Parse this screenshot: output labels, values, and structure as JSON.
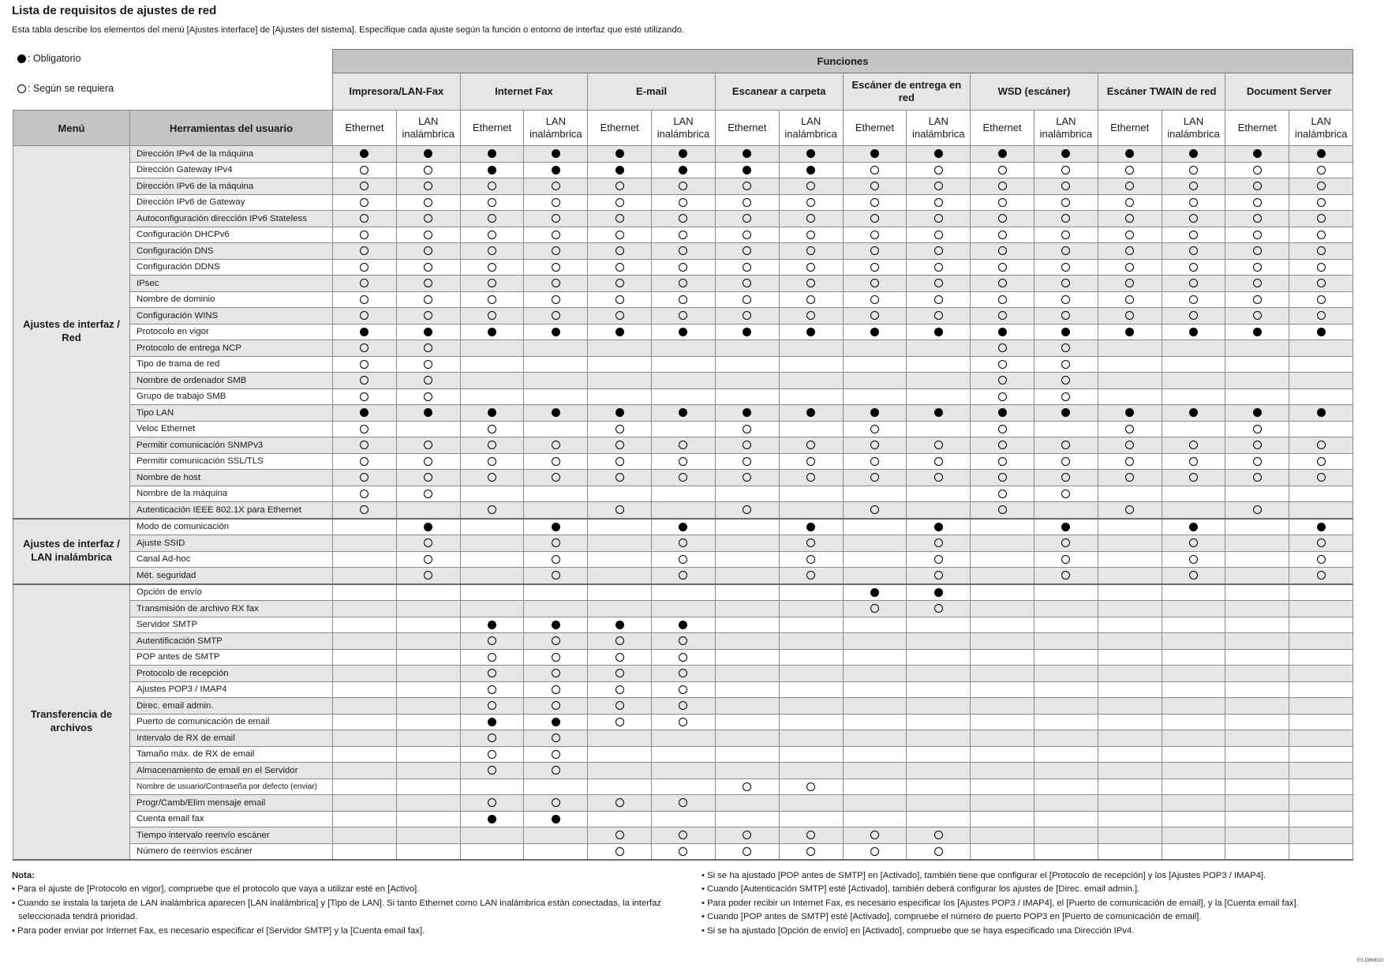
{
  "title": "Lista de requisitos de ajustes de red",
  "subtitle": "Esta tabla describe los elementos del menú [Ajustes interface] de [Ajustes del sistema]. Especifique cada ajuste según la función o entorno de interfaz que esté utilizando.",
  "legend": {
    "filled": {
      "symbol": "filled-circle",
      "label": ": Obligatorio"
    },
    "open": {
      "symbol": "open-circle",
      "label": ": Según se requiera"
    }
  },
  "table": {
    "functions_header": "Funciones",
    "menu_header": "Menú",
    "tools_header": "Herramientas del usuario",
    "functions": [
      "Impresora/LAN-Fax",
      "Internet Fax",
      "E-mail",
      "Escanear a carpeta",
      "Escáner de entrega en red",
      "WSD (escáner)",
      "Escáner TWAIN de red",
      "Document Server"
    ],
    "subcolumns": [
      "Ethernet",
      "LAN inalámbrica"
    ],
    "value_codes": {
      "F": "Obligatorio",
      "O": "Según se requiera",
      "-": ""
    },
    "groups": [
      {
        "menu": "Ajustes de interfaz / Red",
        "rows": [
          {
            "tool": "Dirección IPv4 de la máquina",
            "values": "FFFFFFFFFFFFFFFF"
          },
          {
            "tool": "Dirección Gateway IPv4",
            "values": "OOFFFFFFOOOOOOOO"
          },
          {
            "tool": "Dirección IPv6 de la máquina",
            "values": "OOOOOOOOOOOOOOOO"
          },
          {
            "tool": "Dirección IPv6 de Gateway",
            "values": "OOOOOOOOOOOOOOOO"
          },
          {
            "tool": "Autoconfiguración dirección IPv6 Stateless",
            "values": "OOOOOOOOOOOOOOOO"
          },
          {
            "tool": "Configuración DHCPv6",
            "values": "OOOOOOOOOOOOOOOO"
          },
          {
            "tool": "Configuración DNS",
            "values": "OOOOOOOOOOOOOOOO"
          },
          {
            "tool": "Configuración DDNS",
            "values": "OOOOOOOOOOOOOOOO"
          },
          {
            "tool": "IPsec",
            "values": "OOOOOOOOOOOOOOOO"
          },
          {
            "tool": "Nombre de dominio",
            "values": "OOOOOOOOOOOOOOOO"
          },
          {
            "tool": "Configuración WINS",
            "values": "OOOOOOOOOOOOOOOO"
          },
          {
            "tool": "Protocolo en vigor",
            "values": "FFFFFFFFFFFFFFFF"
          },
          {
            "tool": "Protocolo de entrega NCP",
            "values": "OO--------OO----"
          },
          {
            "tool": "Tipo de trama de red",
            "values": "OO--------OO----"
          },
          {
            "tool": "Nombre de ordenador SMB",
            "values": "OO--------OO----"
          },
          {
            "tool": "Grupo de trabajo SMB",
            "values": "OO--------OO----"
          },
          {
            "tool": "Tipo LAN",
            "values": "FFFFFFFFFFFFFFFF"
          },
          {
            "tool": "Veloc Ethernet",
            "values": "O-O-O-O-O-O-O-O-"
          },
          {
            "tool": "Permitir comunicación SNMPv3",
            "values": "OOOOOOOOOOOOOOOO"
          },
          {
            "tool": "Permitir comunicación SSL/TLS",
            "values": "OOOOOOOOOOOOOOOO"
          },
          {
            "tool": "Nombre de host",
            "values": "OOOOOOOOOOOOOOOO"
          },
          {
            "tool": "Nombre de la máquina",
            "values": "OO--------OO----"
          },
          {
            "tool": "Autenticación IEEE 802.1X para Ethernet",
            "values": "O-O-O-O-O-O-O-O-"
          }
        ]
      },
      {
        "menu": "Ajustes de interfaz / LAN inalámbrica",
        "rows": [
          {
            "tool": "Modo de comunicación",
            "values": "-F-F-F-F-F-F-F-F"
          },
          {
            "tool": "Ajuste SSID",
            "values": "-O-O-O-O-O-O-O-O"
          },
          {
            "tool": "Canal Ad-hoc",
            "values": "-O-O-O-O-O-O-O-O"
          },
          {
            "tool": "Mét. seguridad",
            "values": "-O-O-O-O-O-O-O-O"
          }
        ]
      },
      {
        "menu": "Transferencia de archivos",
        "rows": [
          {
            "tool": "Opción de envío",
            "values": "--------FF------"
          },
          {
            "tool": "Transmisión de archivo RX fax",
            "values": "--------OO------"
          },
          {
            "tool": "Servidor SMTP",
            "values": "--FFFF----------"
          },
          {
            "tool": "Autentificación SMTP",
            "values": "--OOOO----------"
          },
          {
            "tool": "POP antes de SMTP",
            "values": "--OOOO----------"
          },
          {
            "tool": "Protocolo de recepción",
            "values": "--OOOO----------"
          },
          {
            "tool": "Ajustes POP3 / IMAP4",
            "values": "--OOOO----------"
          },
          {
            "tool": "Direc. email admin.",
            "values": "--OOOO----------"
          },
          {
            "tool": "Puerto de comunicación de email",
            "values": "--FFOO----------"
          },
          {
            "tool": "Intervalo de RX de email",
            "values": "--OO------------"
          },
          {
            "tool": "Tamaño máx. de RX de email",
            "values": "--OO------------"
          },
          {
            "tool": "Almacenamiento de email en el Servidor",
            "values": "--OO------------"
          },
          {
            "tool": "Nombre de usuario/Contraseña por defecto (enviar)",
            "values": "------OO--------"
          },
          {
            "tool": "Progr/Camb/Elim mensaje email",
            "values": "--OOOO----------"
          },
          {
            "tool": "Cuenta email fax",
            "values": "--FF------------"
          },
          {
            "tool": "Tiempo intervalo reenvío escáner",
            "values": "----OOOOOO------"
          },
          {
            "tool": "Número de reenvíos escáner",
            "values": "----OOOOOO------"
          }
        ]
      }
    ]
  },
  "notes": {
    "heading": "Nota:",
    "left": [
      "• Para el ajuste de [Protocolo en vigor], compruebe que el protocolo que vaya a utilizar esté en [Activo].",
      "• Cuando se instala la tarjeta de LAN inalámbrica aparecen [LAN inalámbrica] y [Tipo de LAN]. Si tanto Ethernet como LAN inalámbrica están conectadas, la interfaz seleccionada tendrá prioridad.",
      "• Para poder enviar por Internet Fax, es necesario especificar el [Servidor SMTP] y la [Cuenta email fax]."
    ],
    "right": [
      "• Si se ha ajustado [POP antes de SMTP] en [Activado], también tiene que configurar el [Protocolo de recepción] y los [Ajustes POP3 / IMAP4].",
      "• Cuando [Autenticación SMTP] esté [Activado], también deberá configurar los ajustes de [Direc. email admin.].",
      "• Para poder recibir un Internet Fax, es necesario especificar los [Ajustes POP3 / IMAP4], el [Puerto de comunicación de email], y la [Cuenta email fax].",
      "• Cuando [POP antes de SMTP] esté [Activado], compruebe el número de puerto POP3 en [Puerto de comunicación de email].",
      "• Si se ha ajustado [Opción de envío] en [Activado], compruebe que se haya especificado una Dirección IPv4."
    ]
  },
  "doc_code": "ES DBM010"
}
